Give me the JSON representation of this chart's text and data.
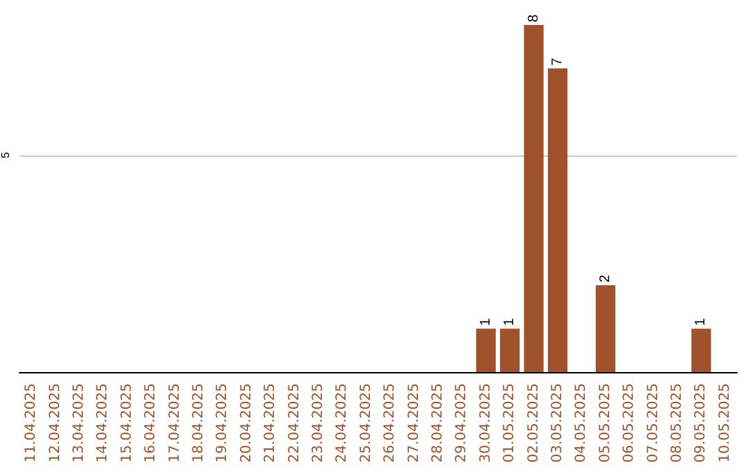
{
  "chart_data": {
    "type": "bar",
    "categories": [
      "11.04.2025",
      "12.04.2025",
      "13.04.2025",
      "14.04.2025",
      "15.04.2025",
      "16.04.2025",
      "17.04.2025",
      "18.04.2025",
      "19.04.2025",
      "20.04.2025",
      "21.04.2025",
      "22.04.2025",
      "23.04.2025",
      "24.04.2025",
      "25.04.2025",
      "26.04.2025",
      "27.04.2025",
      "28.04.2025",
      "29.04.2025",
      "30.04.2025",
      "01.05.2025",
      "02.05.2025",
      "03.05.2025",
      "04.05.2025",
      "05.05.2025",
      "06.05.2025",
      "07.05.2025",
      "08.05.2025",
      "09.05.2025",
      "10.05.2025"
    ],
    "values": [
      null,
      null,
      null,
      null,
      null,
      null,
      null,
      null,
      null,
      null,
      null,
      null,
      null,
      null,
      null,
      null,
      null,
      null,
      null,
      1,
      1,
      8,
      7,
      null,
      2,
      null,
      null,
      null,
      1,
      null
    ],
    "color": "#a0522d",
    "ylim": [
      0,
      8
    ],
    "yticks": [
      {
        "value": 0,
        "label": null
      },
      5
    ],
    "grid": "y",
    "data_labels": true
  }
}
